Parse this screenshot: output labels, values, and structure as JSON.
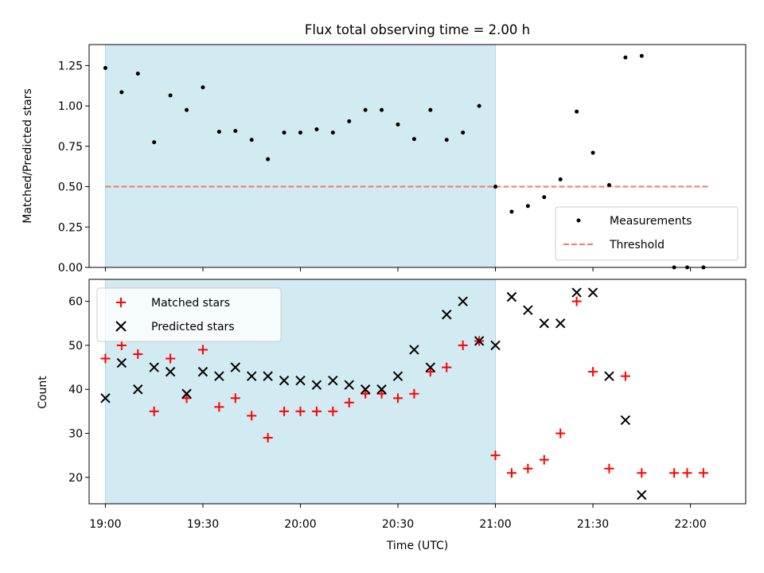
{
  "chart_data": [
    {
      "type": "scatter",
      "title": "Flux total observing time = 2.00 h",
      "xlabel": "",
      "ylabel": "Matched/Predicted stars",
      "ylim": [
        0,
        1.38
      ],
      "yticks": [
        0.0,
        0.25,
        0.5,
        0.75,
        1.0,
        1.25
      ],
      "ytick_labels": [
        "0.00",
        "0.25",
        "0.50",
        "0.75",
        "1.00",
        "1.25"
      ],
      "xlim": [
        "18:55",
        "22:17"
      ],
      "shaded_region": {
        "start": "19:00",
        "end": "21:00",
        "color": "#add8e6"
      },
      "threshold": {
        "value": 0.5,
        "from": "19:00",
        "to": "22:06",
        "color": "#f07878"
      },
      "legend": {
        "position": "lower-right",
        "entries": [
          "Measurements",
          "Threshold"
        ]
      },
      "series": [
        {
          "name": "Measurements",
          "marker": "dot",
          "color": "#000000",
          "points": [
            [
              "19:00",
              1.235
            ],
            [
              "19:05",
              1.085
            ],
            [
              "19:10",
              1.2
            ],
            [
              "19:15",
              0.775
            ],
            [
              "19:20",
              1.065
            ],
            [
              "19:25",
              0.975
            ],
            [
              "19:30",
              1.115
            ],
            [
              "19:35",
              0.84
            ],
            [
              "19:40",
              0.845
            ],
            [
              "19:45",
              0.79
            ],
            [
              "19:50",
              0.67
            ],
            [
              "19:55",
              0.835
            ],
            [
              "20:00",
              0.835
            ],
            [
              "20:05",
              0.855
            ],
            [
              "20:10",
              0.835
            ],
            [
              "20:15",
              0.905
            ],
            [
              "20:20",
              0.975
            ],
            [
              "20:25",
              0.975
            ],
            [
              "20:30",
              0.885
            ],
            [
              "20:35",
              0.795
            ],
            [
              "20:40",
              0.975
            ],
            [
              "20:45",
              0.79
            ],
            [
              "20:50",
              0.835
            ],
            [
              "20:55",
              1.0
            ],
            [
              "21:00",
              0.5
            ],
            [
              "21:05",
              0.345
            ],
            [
              "21:10",
              0.38
            ],
            [
              "21:15",
              0.435
            ],
            [
              "21:20",
              0.545
            ],
            [
              "21:25",
              0.965
            ],
            [
              "21:30",
              0.71
            ],
            [
              "21:35",
              0.51
            ],
            [
              "21:40",
              1.3
            ],
            [
              "21:45",
              1.31
            ],
            [
              "21:55",
              0.0
            ],
            [
              "21:59",
              0.0
            ],
            [
              "22:04",
              0.0
            ]
          ]
        }
      ]
    },
    {
      "type": "scatter",
      "title": "",
      "xlabel": "Time (UTC)",
      "ylabel": "Count",
      "ylim": [
        14,
        65
      ],
      "yticks": [
        20,
        30,
        40,
        50,
        60
      ],
      "xlim": [
        "18:55",
        "22:17"
      ],
      "xticks": [
        "19:00",
        "19:30",
        "20:00",
        "20:30",
        "21:00",
        "21:30",
        "22:00"
      ],
      "shaded_region": {
        "start": "19:00",
        "end": "21:00",
        "color": "#add8e6"
      },
      "legend": {
        "position": "upper-left",
        "entries": [
          "Matched stars",
          "Predicted stars"
        ]
      },
      "series": [
        {
          "name": "Matched stars",
          "marker": "plus",
          "color": "#ff0000",
          "points": [
            [
              "19:00",
              47
            ],
            [
              "19:05",
              50
            ],
            [
              "19:10",
              48
            ],
            [
              "19:15",
              35
            ],
            [
              "19:20",
              47
            ],
            [
              "19:25",
              38
            ],
            [
              "19:30",
              49
            ],
            [
              "19:35",
              36
            ],
            [
              "19:40",
              38
            ],
            [
              "19:45",
              34
            ],
            [
              "19:50",
              29
            ],
            [
              "19:55",
              35
            ],
            [
              "20:00",
              35
            ],
            [
              "20:05",
              35
            ],
            [
              "20:10",
              35
            ],
            [
              "20:15",
              37
            ],
            [
              "20:20",
              39
            ],
            [
              "20:25",
              39
            ],
            [
              "20:30",
              38
            ],
            [
              "20:35",
              39
            ],
            [
              "20:40",
              44
            ],
            [
              "20:45",
              45
            ],
            [
              "20:50",
              50
            ],
            [
              "20:55",
              51
            ],
            [
              "21:00",
              25
            ],
            [
              "21:05",
              21
            ],
            [
              "21:10",
              22
            ],
            [
              "21:15",
              24
            ],
            [
              "21:20",
              30
            ],
            [
              "21:25",
              60
            ],
            [
              "21:30",
              44
            ],
            [
              "21:35",
              22
            ],
            [
              "21:40",
              43
            ],
            [
              "21:45",
              21
            ],
            [
              "21:55",
              21
            ],
            [
              "21:59",
              21
            ],
            [
              "22:04",
              21
            ]
          ]
        },
        {
          "name": "Predicted stars",
          "marker": "x",
          "color": "#000000",
          "points": [
            [
              "19:00",
              38
            ],
            [
              "19:05",
              46
            ],
            [
              "19:10",
              40
            ],
            [
              "19:15",
              45
            ],
            [
              "19:20",
              44
            ],
            [
              "19:25",
              39
            ],
            [
              "19:30",
              44
            ],
            [
              "19:35",
              43
            ],
            [
              "19:40",
              45
            ],
            [
              "19:45",
              43
            ],
            [
              "19:50",
              43
            ],
            [
              "19:55",
              42
            ],
            [
              "20:00",
              42
            ],
            [
              "20:05",
              41
            ],
            [
              "20:10",
              42
            ],
            [
              "20:15",
              41
            ],
            [
              "20:20",
              40
            ],
            [
              "20:25",
              40
            ],
            [
              "20:30",
              43
            ],
            [
              "20:35",
              49
            ],
            [
              "20:40",
              45
            ],
            [
              "20:45",
              57
            ],
            [
              "20:50",
              60
            ],
            [
              "20:55",
              51
            ],
            [
              "21:00",
              50
            ],
            [
              "21:05",
              61
            ],
            [
              "21:10",
              58
            ],
            [
              "21:15",
              55
            ],
            [
              "21:20",
              55
            ],
            [
              "21:25",
              62
            ],
            [
              "21:30",
              62
            ],
            [
              "21:35",
              43
            ],
            [
              "21:40",
              33
            ],
            [
              "21:45",
              16
            ]
          ]
        }
      ]
    }
  ]
}
